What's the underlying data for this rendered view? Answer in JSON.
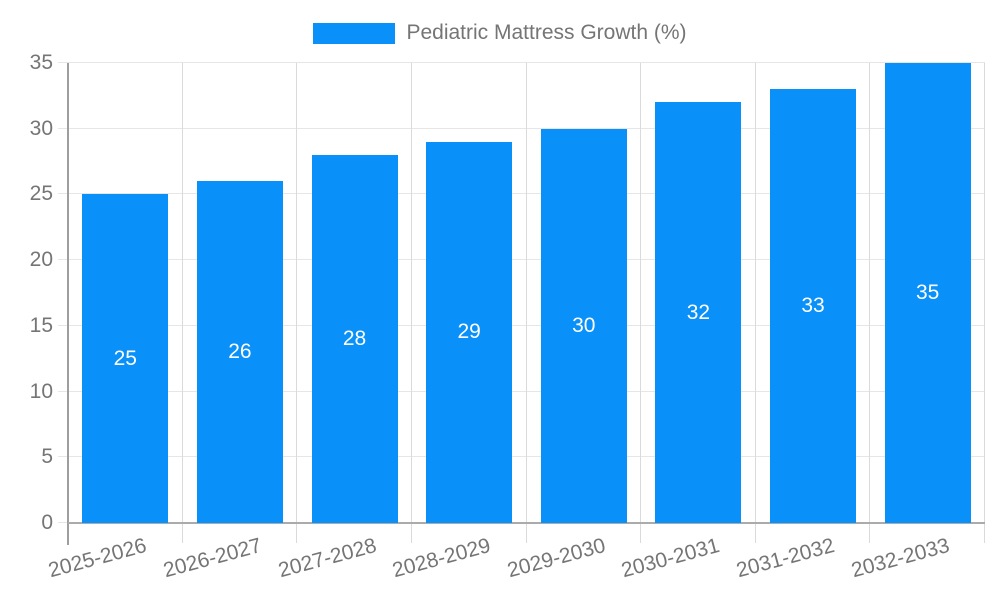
{
  "chart_data": {
    "type": "bar",
    "title": "Pediatric Mattress Growth (%)",
    "legend": {
      "position": "top-center",
      "label": "Pediatric Mattress Growth (%)"
    },
    "categories": [
      "2025-2026",
      "2026-2027",
      "2027-2028",
      "2028-2029",
      "2029-2030",
      "2030-2031",
      "2031-2032",
      "2032-2033"
    ],
    "values": [
      25,
      26,
      28,
      29,
      30,
      32,
      33,
      35
    ],
    "bar_value_labels": [
      "25",
      "26",
      "28",
      "29",
      "30",
      "32",
      "33",
      "35"
    ],
    "xlabel": "",
    "ylabel": "",
    "ylim": [
      0,
      35
    ],
    "y_ticks": [
      0,
      5,
      10,
      15,
      20,
      25,
      30,
      35
    ],
    "grid": true,
    "colors": {
      "bar": "#0a90f9",
      "bar_label_text": "#ffffff",
      "axis_text": "#757575",
      "grid_horizontal": "#e6e6e6",
      "grid_vertical": "#dadada",
      "axis_line_y": "#9e9e9e",
      "axis_line_x": "#ababab",
      "background": "#ffffff"
    }
  }
}
